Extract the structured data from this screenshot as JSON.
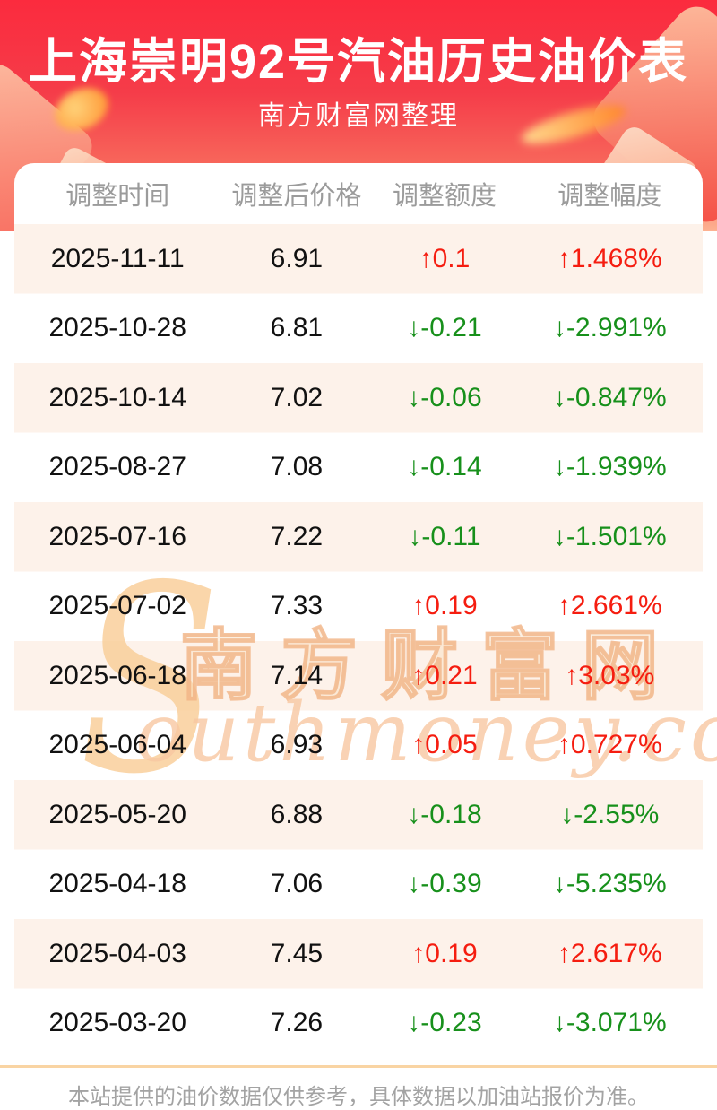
{
  "header": {
    "title": "上海崇明92号汽油历史油价表",
    "subtitle": "南方财富网整理"
  },
  "table": {
    "columns": [
      "调整时间",
      "调整后价格",
      "调整额度",
      "调整幅度"
    ],
    "rows": [
      {
        "date": "2025-11-11",
        "price": "6.91",
        "change": "↑0.1",
        "rate": "↑1.468%",
        "dir": "up"
      },
      {
        "date": "2025-10-28",
        "price": "6.81",
        "change": "↓-0.21",
        "rate": "↓-2.991%",
        "dir": "down"
      },
      {
        "date": "2025-10-14",
        "price": "7.02",
        "change": "↓-0.06",
        "rate": "↓-0.847%",
        "dir": "down"
      },
      {
        "date": "2025-08-27",
        "price": "7.08",
        "change": "↓-0.14",
        "rate": "↓-1.939%",
        "dir": "down"
      },
      {
        "date": "2025-07-16",
        "price": "7.22",
        "change": "↓-0.11",
        "rate": "↓-1.501%",
        "dir": "down"
      },
      {
        "date": "2025-07-02",
        "price": "7.33",
        "change": "↑0.19",
        "rate": "↑2.661%",
        "dir": "up"
      },
      {
        "date": "2025-06-18",
        "price": "7.14",
        "change": "↑0.21",
        "rate": "↑3.03%",
        "dir": "up"
      },
      {
        "date": "2025-06-04",
        "price": "6.93",
        "change": "↑0.05",
        "rate": "↑0.727%",
        "dir": "up"
      },
      {
        "date": "2025-05-20",
        "price": "6.88",
        "change": "↓-0.18",
        "rate": "↓-2.55%",
        "dir": "down"
      },
      {
        "date": "2025-04-18",
        "price": "7.06",
        "change": "↓-0.39",
        "rate": "↓-5.235%",
        "dir": "down"
      },
      {
        "date": "2025-04-03",
        "price": "7.45",
        "change": "↑0.19",
        "rate": "↑2.617%",
        "dir": "up"
      },
      {
        "date": "2025-03-20",
        "price": "7.26",
        "change": "↓-0.23",
        "rate": "↓-3.071%",
        "dir": "down"
      }
    ]
  },
  "watermark": {
    "initial": "S",
    "cn": "南方财富网",
    "script": "outhmoney.com"
  },
  "footer": {
    "note": "本站提供的油价数据仅供参考，具体数据以加油站报价为准。"
  },
  "colors": {
    "up": "#f51d10",
    "down": "#17901b",
    "banner_red_top": "#fb2b3e",
    "banner_red_bottom": "#fdb292",
    "row_stripe": "#fdf2ea",
    "header_text": "#9b9b9b",
    "accent_line": "#f9d4a3",
    "watermark_orange": "#f8c8a2"
  }
}
